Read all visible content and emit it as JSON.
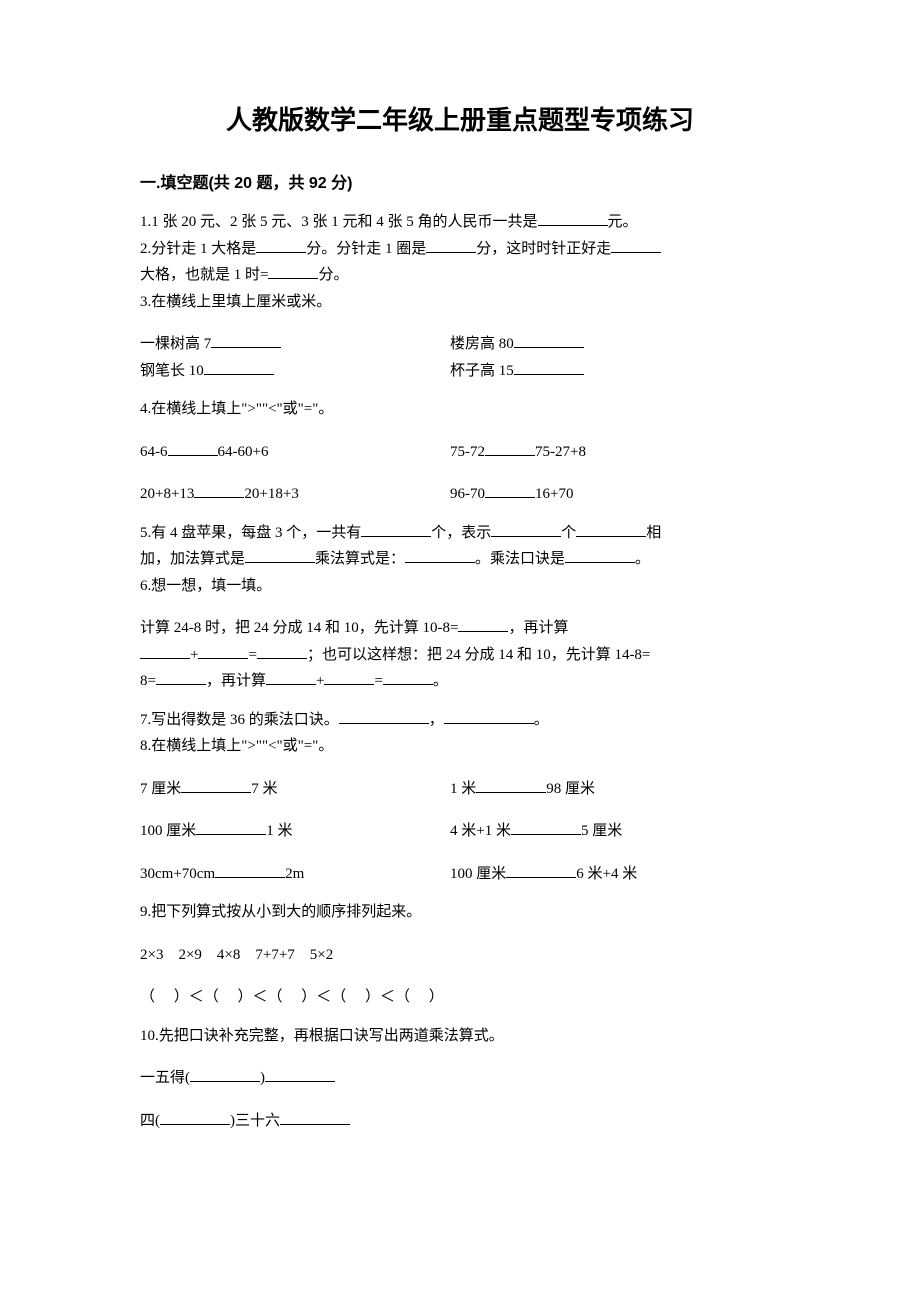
{
  "title": "人教版数学二年级上册重点题型专项练习",
  "section": {
    "header": "一.填空题(共 20 题，共 92 分)"
  },
  "q1": {
    "prefix": "1.1 张 20 元、2 张 5 元、3 张 1 元和 4 张 5 角的人民币一共是",
    "suffix": "元。"
  },
  "q2": {
    "p1": "2.分针走 1 大格是",
    "p2": "分。分针走 1 圈是",
    "p3": "分，这时时针正好走",
    "p4": "大格，也就是 1 时=",
    "p5": "分。"
  },
  "q3": {
    "stem": "3.在横线上里填上厘米或米。",
    "r1a": "一棵树高 7",
    "r1b": "楼房高 80",
    "r2a": "钢笔长 10",
    "r2b": "杯子高 15"
  },
  "q4": {
    "stem": "4.在横线上填上\">\"\"<\"或\"=\"。",
    "r1a_l": "64-6",
    "r1a_r": "64-60+6",
    "r1b_l": "75-72",
    "r1b_r": "75-27+8",
    "r2a_l": "20+8+13",
    "r2a_r": "20+18+3",
    "r2b_l": "96-70",
    "r2b_r": "16+70"
  },
  "q5": {
    "p1": "5.有 4 盘苹果，每盘 3 个，一共有",
    "p2": "个，表示",
    "p3": "个",
    "p4": "相加，加法算式是",
    "p5": "乘法算式是：",
    "p6": "。乘法口诀是",
    "p7": "。"
  },
  "q6": {
    "stem": "6.想一想，填一填。",
    "p1": "计算 24-8 时，把 24 分成 14 和 10，先计算 10-8=",
    "p2": "，再计算",
    "plus": "+",
    "eq": "=",
    "p3": "；也可以这样想：把 24 分成 14 和 10，先计算 14-8=",
    "p4": "，再计算",
    "p5": "。"
  },
  "q7": {
    "p1": "7.写出得数是 36 的乘法口诀。",
    "comma": "，",
    "p2": "。"
  },
  "q8": {
    "stem": "8.在横线上填上\">\"\"<\"或\"=\"。",
    "r1a_l": "7 厘米",
    "r1a_r": "7 米",
    "r1b_l": "1 米",
    "r1b_r": "98 厘米",
    "r2a_l": "100 厘米",
    "r2a_r": "1 米",
    "r2b_l": "4 米+1 米",
    "r2b_r": "5 厘米",
    "r3a_l": "30cm+70cm",
    "r3a_r": "2m",
    "r3b_l": "100 厘米",
    "r3b_r": "6 米+4 米"
  },
  "q9": {
    "stem": "9.把下列算式按从小到大的顺序排列起来。",
    "items": "2×3    2×9    4×8    7+7+7    5×2",
    "order": "（     ）＜（     ）＜（     ）＜（     ）＜（     ）"
  },
  "q10": {
    "stem": "10.先把口诀补充完整，再根据口诀写出两道乘法算式。",
    "r1a": "一五得(",
    "r1b": ")",
    "r2a": "四(",
    "r2b": ")三十六"
  }
}
